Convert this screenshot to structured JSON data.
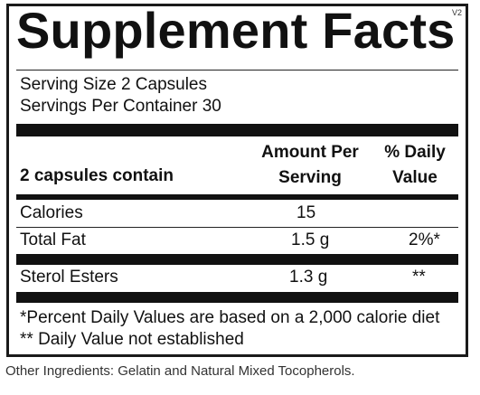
{
  "version": "V2",
  "title": "Supplement Facts",
  "serving": {
    "size": "Serving Size 2 Capsules",
    "per_container": "Servings Per Container 30"
  },
  "header": {
    "contain": "2 capsules contain",
    "amount": "Amount Per Serving",
    "daily": "% Daily Value"
  },
  "rows": [
    {
      "name": "Calories",
      "amount": "15",
      "daily": ""
    },
    {
      "name": "Total Fat",
      "amount": "1.5 g",
      "daily": "2%*"
    },
    {
      "name": "Sterol Esters",
      "amount": "1.3 g",
      "daily": "**"
    }
  ],
  "footnotes": {
    "percent": "*Percent Daily Values are based on a 2,000 calorie diet",
    "not_established": "** Daily Value not established"
  },
  "other_ingredients": "Other Ingredients: Gelatin and Natural Mixed Tocopherols."
}
